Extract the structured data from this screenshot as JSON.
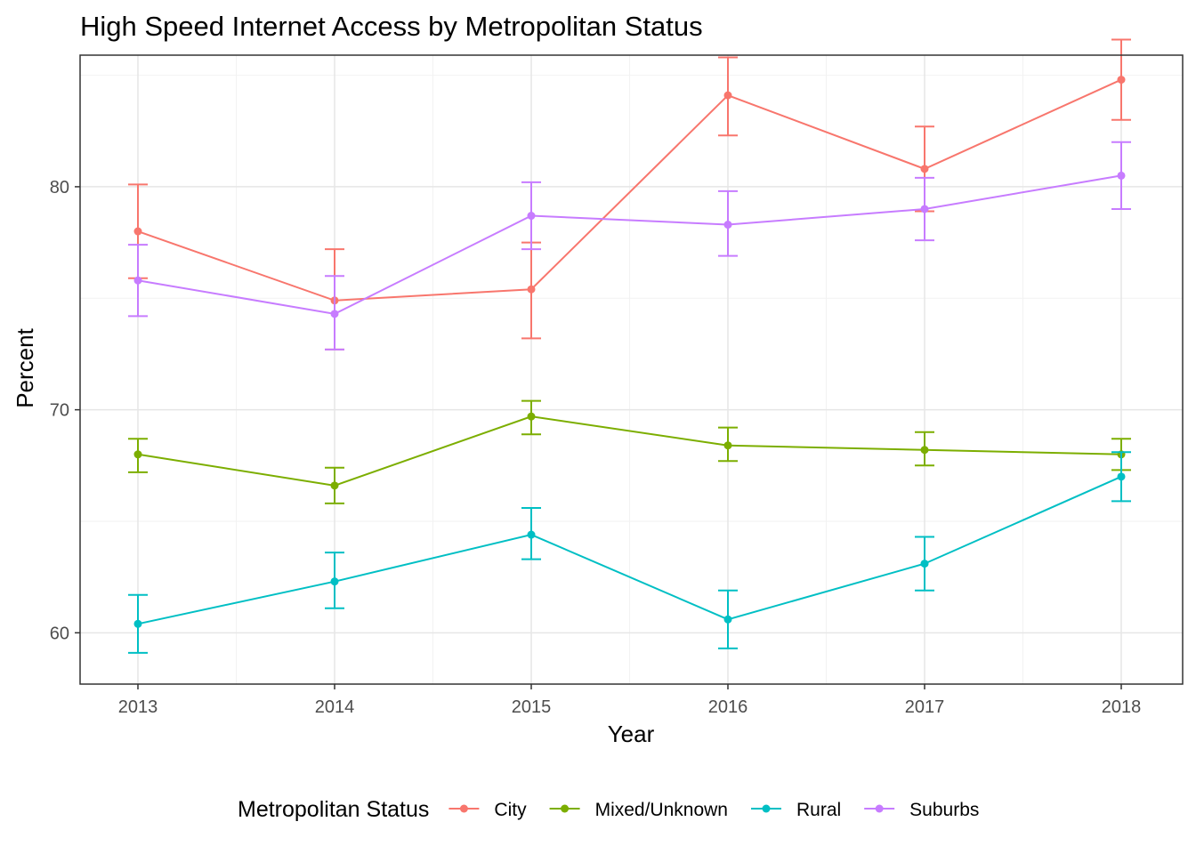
{
  "chart_data": {
    "type": "line",
    "title": "High Speed Internet Access by Metropolitan Status",
    "xlabel": "Year",
    "ylabel": "Percent",
    "x": [
      "2013",
      "2014",
      "2015",
      "2016",
      "2017",
      "2018"
    ],
    "y_ticks": [
      "60",
      "70",
      "80"
    ],
    "ylim": [
      57.7,
      85.9
    ],
    "grid": true,
    "error_bars": true,
    "legend": {
      "title": "Metropolitan Status",
      "position": "bottom"
    },
    "series": [
      {
        "name": "City",
        "color": "#F8766D",
        "values": [
          78.0,
          74.9,
          75.4,
          84.1,
          80.8,
          84.8
        ],
        "lower": [
          75.9,
          72.7,
          73.2,
          82.3,
          78.9,
          83.0
        ],
        "upper": [
          80.1,
          77.2,
          77.5,
          85.8,
          82.7,
          86.6
        ]
      },
      {
        "name": "Mixed/Unknown",
        "color": "#7CAE00",
        "values": [
          68.0,
          66.6,
          69.7,
          68.4,
          68.2,
          68.0
        ],
        "lower": [
          67.2,
          65.8,
          68.9,
          67.7,
          67.5,
          67.3
        ],
        "upper": [
          68.7,
          67.4,
          70.4,
          69.2,
          69.0,
          68.7
        ]
      },
      {
        "name": "Rural",
        "color": "#00BFC4",
        "values": [
          60.4,
          62.3,
          64.4,
          60.6,
          63.1,
          67.0
        ],
        "lower": [
          59.1,
          61.1,
          63.3,
          59.3,
          61.9,
          65.9
        ],
        "upper": [
          61.7,
          63.6,
          65.6,
          61.9,
          64.3,
          68.1
        ]
      },
      {
        "name": "Suburbs",
        "color": "#C77CFF",
        "values": [
          75.8,
          74.3,
          78.7,
          78.3,
          79.0,
          80.5
        ],
        "lower": [
          74.2,
          72.7,
          77.2,
          76.9,
          77.6,
          79.0
        ],
        "upper": [
          77.4,
          76.0,
          80.2,
          79.8,
          80.4,
          82.0
        ]
      }
    ]
  }
}
